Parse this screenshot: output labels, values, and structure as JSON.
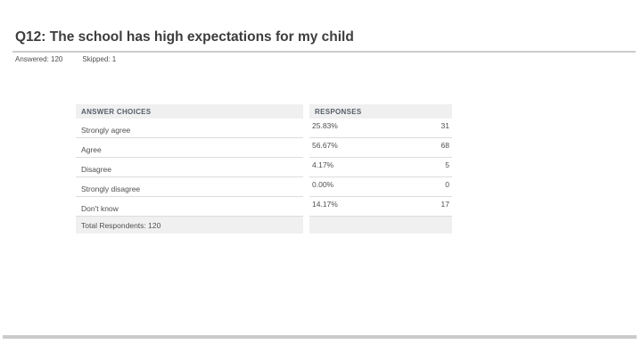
{
  "page": {
    "title": "Q12: The school has high expectations for my child",
    "answered": "Answered: 120",
    "skipped": "Skipped: 1"
  },
  "table": {
    "columns": [
      "ANSWER CHOICES",
      "RESPONSES"
    ],
    "rows": [
      {
        "label": "Strongly agree",
        "percent": "25.83%",
        "count": "31"
      },
      {
        "label": "Agree",
        "percent": "56.67%",
        "count": "68"
      },
      {
        "label": "Disagree",
        "percent": "4.17%",
        "count": "5"
      },
      {
        "label": "Strongly disagree",
        "percent": "0.00%",
        "count": "0"
      },
      {
        "label": "Don't know",
        "percent": "14.17%",
        "count": "17"
      }
    ],
    "footer": "Total Respondents: 120"
  },
  "colors": {
    "title_text": "#3d3d3d",
    "body_text": "#4f4f4f",
    "header_text": "#565d68",
    "header_bg": "#f0f0f0",
    "row_border": "#dcdcdc",
    "divider": "#cccccc",
    "bottom_bar": "#cbcbcb"
  }
}
